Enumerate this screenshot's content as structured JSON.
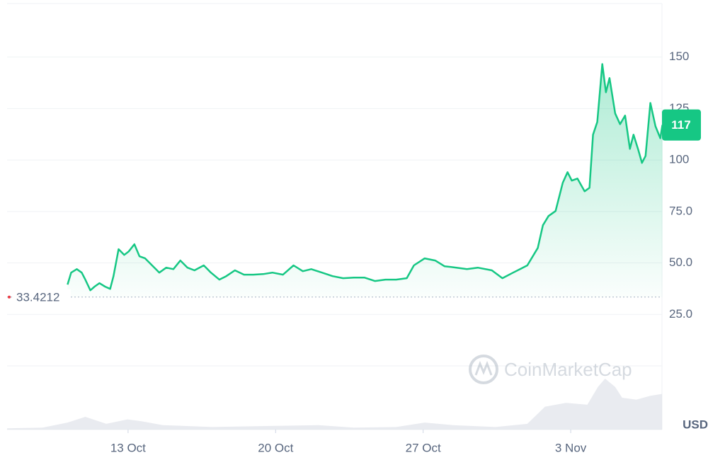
{
  "chart_data": {
    "type": "line",
    "x": [
      10.13,
      10.3,
      10.57,
      10.8,
      10.97,
      11.21,
      11.41,
      11.64,
      11.91,
      12.15,
      12.31,
      12.55,
      12.82,
      13.03,
      13.3,
      13.54,
      13.81,
      14.14,
      14.48,
      14.81,
      15.15,
      15.48,
      15.82,
      16.15,
      16.59,
      16.93,
      17.33,
      17.66,
      18.07,
      18.5,
      18.94,
      19.41,
      19.85,
      20.35,
      20.85,
      21.29,
      21.69,
      22.2,
      22.7,
      23.2,
      23.71,
      24.21,
      24.71,
      25.21,
      25.72,
      26.22,
      26.56,
      27.07,
      27.57,
      28.01,
      28.58,
      29.08,
      29.59,
      30.26,
      30.76,
      31.27,
      31.6,
      31.94,
      32.44,
      32.68,
      32.95,
      33.28,
      33.62,
      33.85,
      34.05,
      34.32,
      34.66,
      34.89,
      35.06,
      35.26,
      35.5,
      35.67,
      35.84,
      36.11,
      36.34,
      36.58,
      36.81,
      36.98,
      37.21,
      37.38,
      37.55,
      37.78,
      38.02,
      38.25,
      38.35
    ],
    "values": [
      39.5,
      45.3,
      47,
      45.3,
      41.9,
      36.7,
      38.5,
      40.2,
      38.5,
      37.4,
      43.6,
      56.7,
      53.9,
      55.6,
      59.1,
      53.2,
      52.2,
      48.8,
      45.3,
      47.7,
      47,
      51.2,
      47.7,
      46.4,
      48.8,
      45.3,
      41.9,
      43.6,
      46.4,
      44.3,
      44.3,
      44.6,
      45.3,
      44.3,
      48.8,
      46,
      47,
      45.3,
      43.6,
      42.6,
      42.9,
      42.9,
      41.2,
      41.9,
      41.9,
      42.6,
      48.8,
      52.2,
      51.2,
      48.4,
      47.7,
      47,
      47.7,
      46.4,
      42.6,
      45.3,
      47,
      48.8,
      57.3,
      68.3,
      72.8,
      75.2,
      88.9,
      94.1,
      90,
      91,
      84.8,
      86.5,
      112.3,
      118.5,
      146.6,
      132.9,
      139.8,
      122.6,
      117.4,
      121.6,
      105.4,
      112.3,
      104.7,
      98.6,
      102,
      127.7,
      116.4,
      110.6,
      117
    ],
    "color": "#16c784",
    "xlim": [
      7.26,
      38.33
    ],
    "xticks": [
      {
        "value": 13,
        "label": "13 Oct"
      },
      {
        "value": 20,
        "label": "20 Oct"
      },
      {
        "value": 27,
        "label": "27 Oct"
      },
      {
        "value": 34,
        "label": "3 Nov"
      }
    ],
    "ylim": [
      0,
      176
    ],
    "yticks": [
      {
        "value": 25,
        "label": "25.0"
      },
      {
        "value": 50,
        "label": "50.0"
      },
      {
        "value": 75,
        "label": "75.0"
      },
      100,
      125,
      150
    ],
    "grid": true,
    "current_price": 117,
    "reference_value": 33.4212,
    "volume": {
      "x": [
        7.26,
        8.94,
        10.13,
        10.97,
        11.97,
        12.97,
        13.64,
        14.65,
        16.99,
        20.35,
        22.03,
        23.71,
        25.72,
        27.07,
        28.41,
        30.43,
        31.94,
        32.78,
        33.78,
        34.79,
        35.29,
        35.63,
        36.11,
        36.44,
        37.11,
        37.78,
        38.33
      ],
      "values": [
        2,
        3,
        11,
        20,
        9,
        16,
        13,
        7,
        4,
        6,
        7,
        3,
        4,
        11,
        7,
        4,
        9,
        36,
        42,
        39,
        67,
        80,
        67,
        50,
        47,
        53,
        56
      ]
    },
    "watermark": "CoinMarketCap",
    "currency": "USD"
  }
}
